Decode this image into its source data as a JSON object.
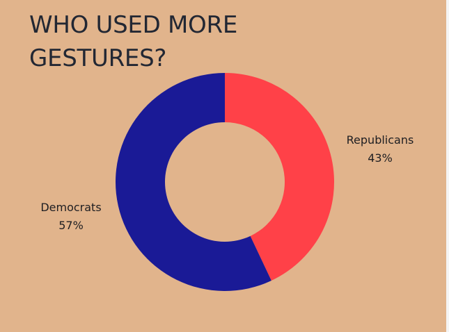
{
  "colors": {
    "background": "#e1b48c",
    "title": "#222733",
    "democrats": "#1a1a96",
    "republicans": "#ff4148"
  },
  "chart_data": {
    "type": "pie",
    "variant": "donut",
    "title_lines": [
      "WHO USED MORE",
      "GESTURES?"
    ],
    "slices": [
      {
        "name": "Republicans",
        "value": 43,
        "label": "43%",
        "color": "#ff4148"
      },
      {
        "name": "Democrats",
        "value": 57,
        "label": "57%",
        "color": "#1a1a96"
      }
    ],
    "legend": "none",
    "start": "top",
    "direction": "clockwise"
  }
}
